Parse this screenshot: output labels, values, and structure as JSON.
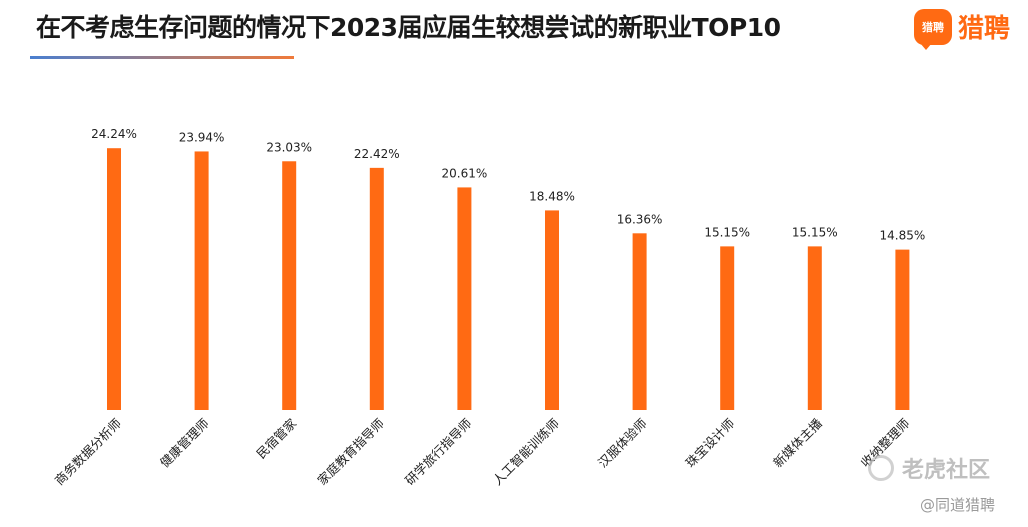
{
  "header": {
    "title": "在不考虑生存问题的情况下2023届应届生较想尝试的新职业TOP10",
    "logo_badge": "猎聘",
    "logo_text": "猎聘"
  },
  "watermark": {
    "community": "老虎社区",
    "source": "@同道猎聘"
  },
  "colors": {
    "bar": "#ff6a13",
    "title": "#1a1a1a",
    "accent": "#ff6a13"
  },
  "chart_data": {
    "type": "bar",
    "title": "在不考虑生存问题的情况下2023届应届生较想尝试的新职业TOP10",
    "xlabel": "",
    "ylabel": "",
    "ylim": [
      0,
      27
    ],
    "grid": false,
    "legend": "none",
    "categories": [
      "商务数据分析师",
      "健康管理师",
      "民宿管家",
      "家庭教育指导师",
      "研学旅行指导师",
      "人工智能训练师",
      "汉服体验师",
      "珠宝设计师",
      "新媒体主播",
      "收纳整理师"
    ],
    "values": [
      24.24,
      23.94,
      23.03,
      22.42,
      20.61,
      18.48,
      16.36,
      15.15,
      15.15,
      14.85
    ],
    "data_labels": [
      "24.24%",
      "23.94%",
      "23.03%",
      "22.42%",
      "20.61%",
      "18.48%",
      "16.36%",
      "15.15%",
      "15.15%",
      "14.85%"
    ]
  }
}
